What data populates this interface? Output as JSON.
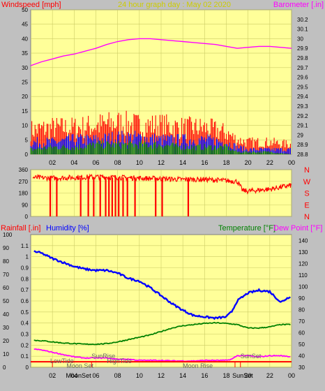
{
  "header": {
    "left_label": "Windspeed [mph]",
    "title": "24 hour graph day : May 02 2020",
    "right_label": "Barometer [.in]"
  },
  "colors": {
    "panel_bg": "#ffff99",
    "outer_bg": "#c0c0c0",
    "red": "#ff0000",
    "blue": "#0000ff",
    "green": "#008000",
    "magenta": "#ff00ff",
    "title_color": "#cccc00"
  },
  "chart_data": [
    {
      "type": "line",
      "name": "wind-and-barometer",
      "x_ticks": [
        "02",
        "04",
        "06",
        "08",
        "10",
        "12",
        "14",
        "16",
        "18",
        "20",
        "22",
        "00"
      ],
      "xlim": [
        0,
        24
      ],
      "left_axis": {
        "label": "Windspeed [mph]",
        "ylim": [
          0,
          50
        ],
        "ticks": [
          0,
          5,
          10,
          15,
          20,
          25,
          30,
          35,
          40,
          45,
          50
        ]
      },
      "right_axis": {
        "label": "Barometer [.in]",
        "ylim": [
          28.8,
          30.3
        ],
        "ticks": [
          "28.8",
          "28.9",
          "29",
          "29.1",
          "29.2",
          "29.3",
          "29.4",
          "29.5",
          "29.6",
          "29.7",
          "29.8",
          "29.9",
          "30",
          "30.1",
          "30.2"
        ]
      },
      "series": [
        {
          "color": "#ff00ff",
          "axis": "right",
          "x": [
            0,
            1,
            2,
            3,
            4,
            5,
            6,
            7,
            8,
            9,
            10,
            11,
            12,
            13,
            14,
            15,
            16,
            17,
            18,
            19,
            20,
            21,
            22,
            23,
            24
          ],
          "values": [
            29.72,
            29.76,
            29.79,
            29.82,
            29.84,
            29.87,
            29.9,
            29.94,
            29.97,
            29.99,
            30.0,
            30.0,
            29.99,
            29.98,
            29.97,
            29.96,
            29.95,
            29.94,
            29.92,
            29.9,
            29.91,
            29.92,
            29.92,
            29.91,
            29.9
          ]
        },
        {
          "color": "#ff0000",
          "axis": "left",
          "kind": "gust",
          "x": [
            0,
            2,
            4,
            6,
            8,
            10,
            12,
            14,
            16,
            18,
            19,
            20,
            22,
            24
          ],
          "values": [
            10,
            11,
            11,
            12,
            13,
            12,
            12,
            11,
            11,
            9,
            6,
            5,
            5,
            4
          ]
        },
        {
          "color": "#0000ff",
          "axis": "left",
          "kind": "average",
          "x": [
            0,
            2,
            4,
            6,
            8,
            10,
            12,
            14,
            16,
            18,
            19,
            20,
            22,
            24
          ],
          "values": [
            5,
            5,
            6,
            6,
            7,
            7,
            6,
            6,
            6,
            5,
            3,
            2,
            2,
            2
          ]
        },
        {
          "color": "#008000",
          "axis": "left",
          "kind": "minimum",
          "x": [
            0,
            2,
            4,
            6,
            8,
            10,
            12,
            14,
            16,
            18,
            19,
            20,
            22,
            24
          ],
          "values": [
            2,
            3,
            3,
            4,
            4,
            4,
            4,
            3,
            3,
            3,
            1,
            1,
            1,
            0
          ]
        }
      ]
    },
    {
      "type": "line",
      "name": "wind-direction",
      "x_ticks": [
        "02",
        "04",
        "06",
        "08",
        "10",
        "12",
        "14",
        "16",
        "18",
        "20",
        "22",
        "00"
      ],
      "xlim": [
        0,
        24
      ],
      "left_axis": {
        "ylim": [
          0,
          360
        ],
        "ticks": [
          0,
          90,
          180,
          270,
          360
        ]
      },
      "right_labels": [
        "N",
        "W",
        "S",
        "E",
        "N"
      ],
      "series": [
        {
          "color": "#ff0000",
          "x": [
            0,
            2,
            4,
            6,
            8,
            10,
            12,
            14,
            16,
            18,
            19,
            19.5,
            20,
            22,
            24
          ],
          "values": [
            300,
            295,
            300,
            305,
            300,
            295,
            290,
            285,
            285,
            275,
            270,
            200,
            195,
            210,
            240
          ],
          "drops_to_zero_at": [
            1.8,
            2.4,
            4.6,
            5.3,
            5.8,
            6.4,
            6.9,
            7.2,
            7.5,
            7.8,
            8.1,
            8.5,
            8.9,
            9.6,
            11.5,
            12.1,
            14.5
          ]
        }
      ]
    },
    {
      "type": "line",
      "name": "rain-humidity-temperature",
      "x_ticks": [
        "02",
        "04",
        "06",
        "08",
        "10",
        "12",
        "14",
        "16",
        "18",
        "20",
        "22",
        "00"
      ],
      "xlim": [
        0,
        24
      ],
      "rain_axis": {
        "label": "Rainfall [.in]",
        "ylim": [
          0,
          1.2
        ],
        "ticks": [
          "0",
          "0.1",
          "0.2",
          "0.3",
          "0.4",
          "0.5",
          "0.6",
          "0.7",
          "0.8",
          "0.9",
          "1",
          "1.1"
        ]
      },
      "humidity_axis": {
        "label": "Humidity [%]",
        "ylim": [
          0,
          100
        ],
        "ticks": [
          0,
          10,
          20,
          30,
          40,
          50,
          60,
          70,
          80,
          90,
          100
        ]
      },
      "temp_axis": {
        "label": "Temperature [°F]",
        "label2": "Dew Point [°F]",
        "ylim": [
          30,
          145
        ],
        "ticks": [
          30,
          40,
          50,
          60,
          70,
          80,
          90,
          100,
          110,
          120,
          130,
          140
        ]
      },
      "series": [
        {
          "color": "#0000ff",
          "axis": "humidity",
          "x": [
            0,
            1,
            2,
            3,
            4,
            5,
            6,
            7,
            8,
            9,
            10,
            11,
            12,
            13,
            14,
            15,
            16,
            17,
            18,
            18.5,
            19,
            20,
            21,
            22,
            23,
            24
          ],
          "values": [
            88,
            86,
            82,
            79,
            76,
            74,
            73,
            73,
            71,
            67,
            65,
            60,
            54,
            48,
            43,
            39,
            38,
            37,
            38,
            42,
            50,
            56,
            58,
            57,
            49,
            54
          ]
        },
        {
          "color": "#008000",
          "axis": "temp",
          "x": [
            0,
            1,
            2,
            3,
            4,
            5,
            6,
            7,
            8,
            9,
            10,
            11,
            12,
            13,
            14,
            15,
            16,
            17,
            18,
            19,
            20,
            21,
            22,
            23,
            24
          ],
          "values": [
            53.5,
            53,
            52,
            51,
            50.5,
            50,
            50,
            50.5,
            52,
            54,
            56,
            58,
            61,
            64,
            66,
            67,
            68,
            68.5,
            68,
            67,
            64,
            64,
            65,
            67,
            67
          ]
        },
        {
          "color": "#ff00ff",
          "axis": "temp",
          "x": [
            0,
            1,
            2,
            3,
            4,
            5,
            6,
            7,
            8,
            9,
            10,
            11,
            12,
            13,
            14,
            15,
            16,
            17,
            18,
            18.5,
            19,
            20,
            21,
            22,
            23,
            24
          ],
          "values": [
            46,
            45,
            43,
            41,
            39,
            38,
            38,
            38,
            37,
            37,
            36,
            36,
            36,
            35.5,
            35.5,
            35.5,
            36,
            36,
            36,
            37,
            40,
            40,
            39,
            40,
            40,
            39
          ]
        },
        {
          "color": "#ff0000",
          "axis": "rain",
          "x": [
            0,
            24
          ],
          "values": [
            0.05,
            0.05
          ]
        }
      ],
      "annotations": [
        "LowTide",
        "Moon Set",
        "SunRise",
        "HighTide",
        "Moon Rise",
        "SunSet",
        "MoonSet",
        "SunSet"
      ]
    }
  ]
}
